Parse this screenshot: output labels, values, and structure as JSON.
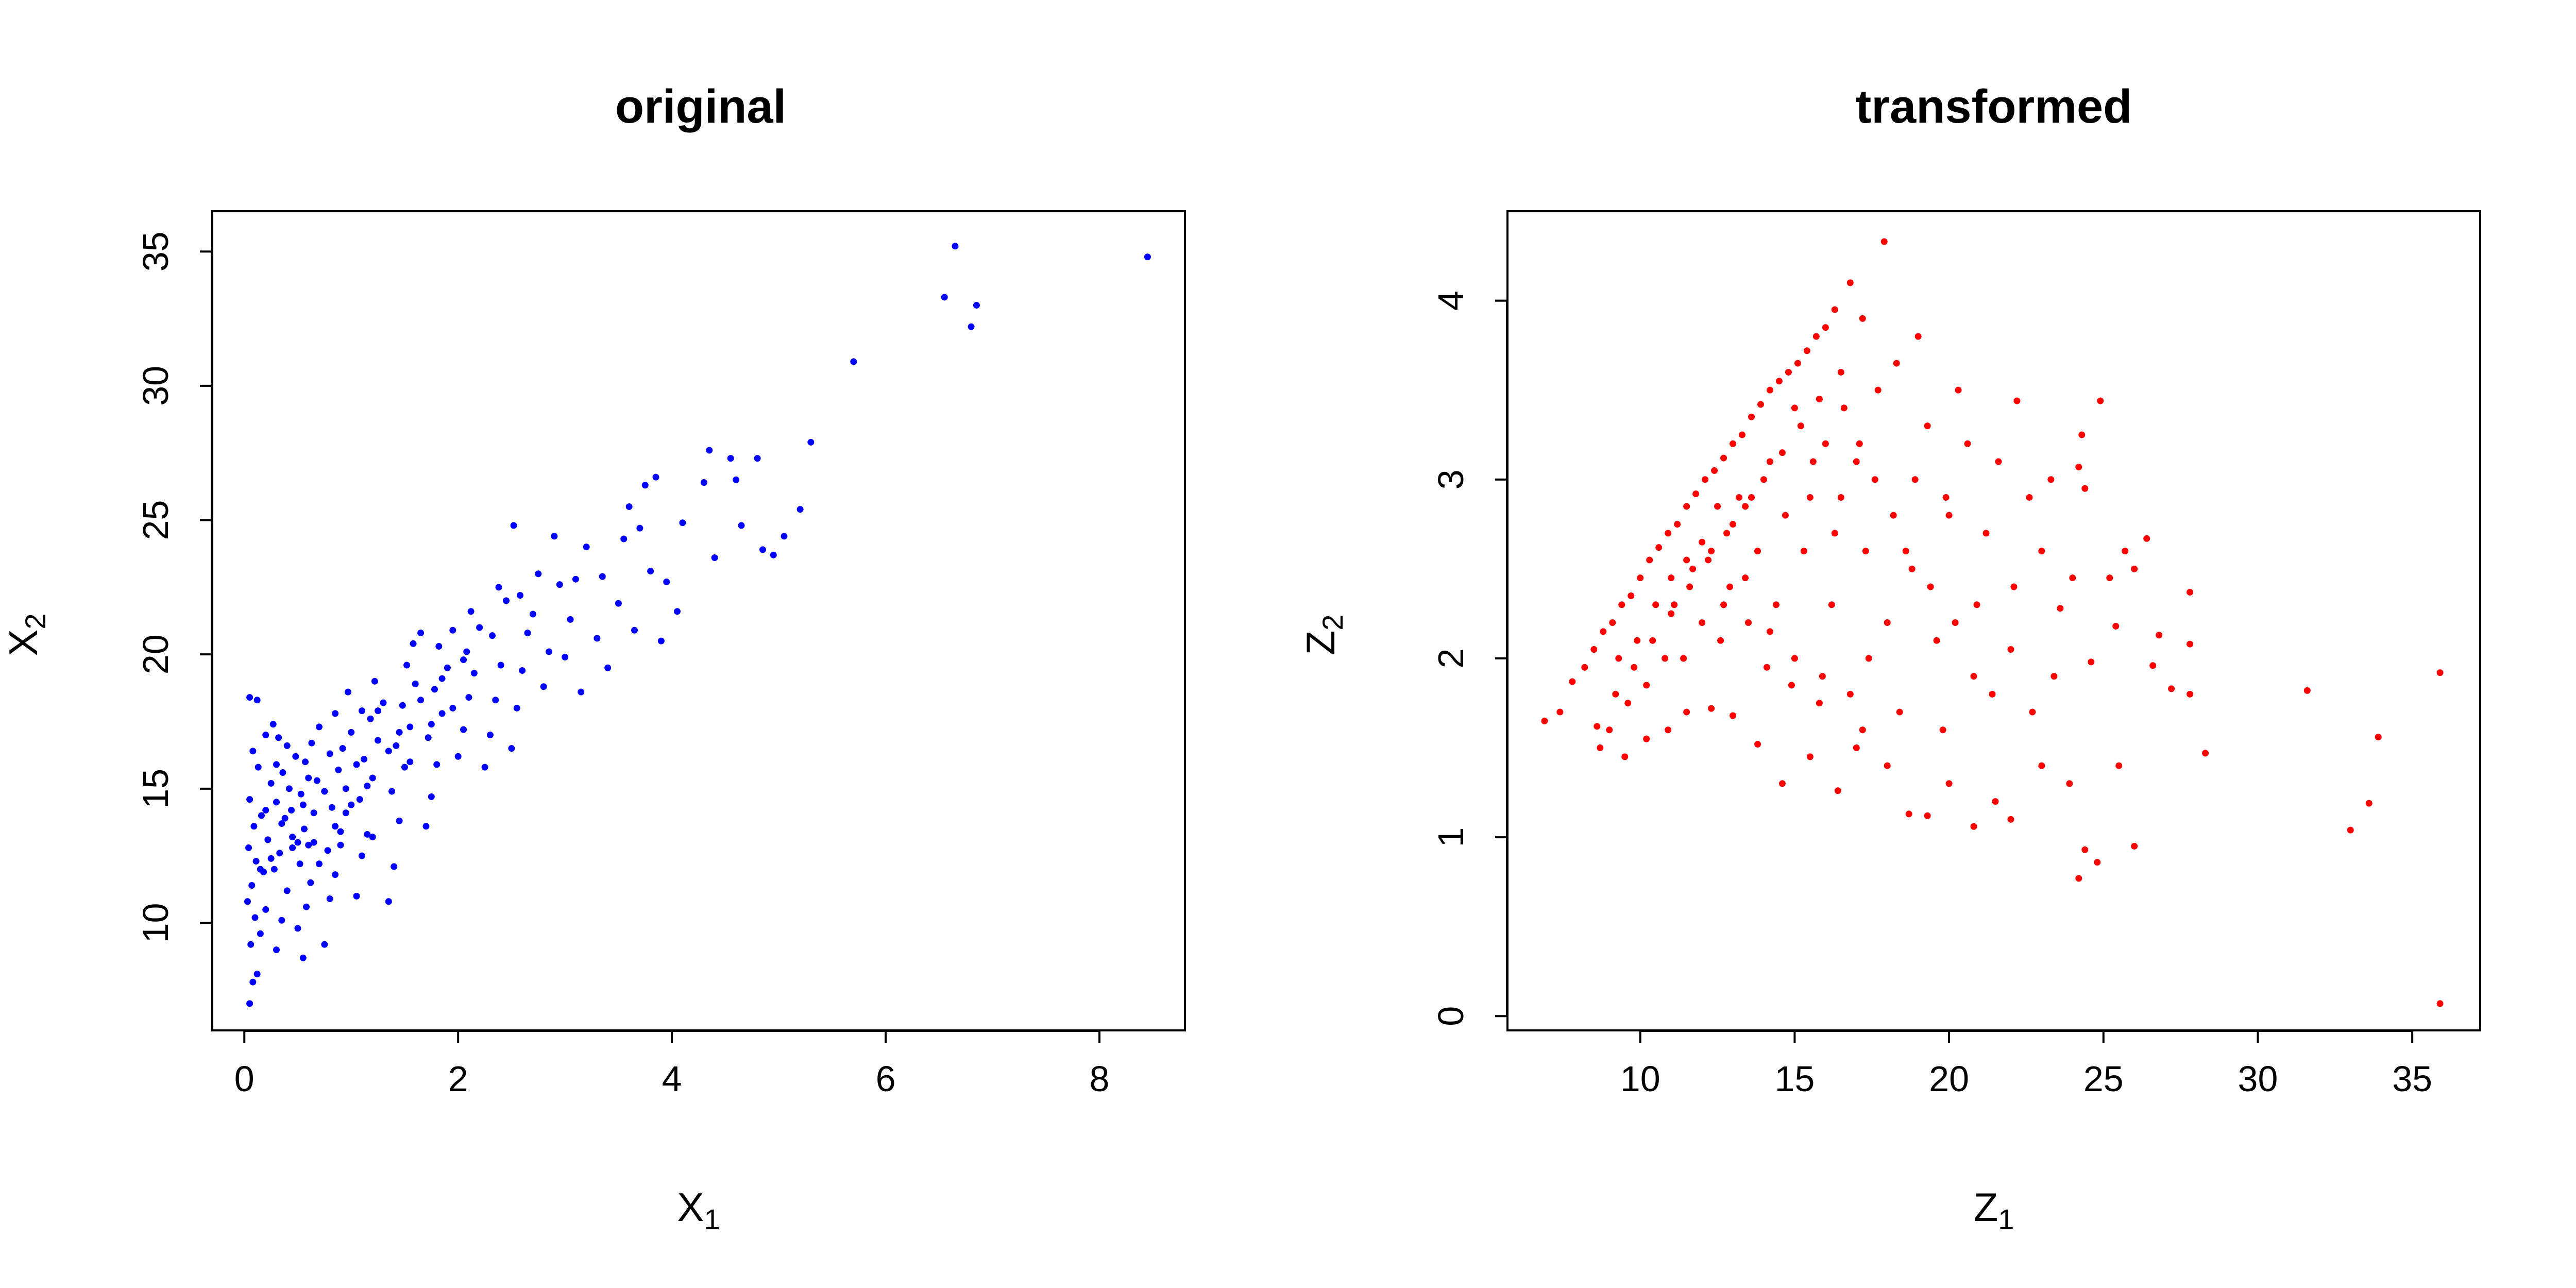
{
  "chart_data": [
    {
      "type": "scatter",
      "title": "original",
      "xlabel_main": "X",
      "xlabel_sub": "1",
      "ylabel_main": "X",
      "ylabel_sub": "2",
      "xlim": [
        -0.3,
        8.8
      ],
      "ylim": [
        6.0,
        36.5
      ],
      "xticks": [
        0,
        2,
        4,
        6,
        8
      ],
      "yticks": [
        10,
        15,
        20,
        25,
        30,
        35
      ],
      "color": "#0000ff",
      "grid": false,
      "points": [
        [
          0.05,
          7.0
        ],
        [
          0.08,
          7.8
        ],
        [
          0.12,
          8.1
        ],
        [
          0.06,
          9.2
        ],
        [
          0.15,
          9.6
        ],
        [
          0.1,
          10.2
        ],
        [
          0.03,
          10.8
        ],
        [
          0.2,
          10.5
        ],
        [
          0.07,
          11.4
        ],
        [
          0.18,
          11.9
        ],
        [
          0.11,
          12.3
        ],
        [
          0.04,
          12.8
        ],
        [
          0.22,
          13.1
        ],
        [
          0.09,
          13.6
        ],
        [
          0.16,
          14.0
        ],
        [
          0.05,
          14.6
        ],
        [
          0.25,
          15.2
        ],
        [
          0.13,
          15.8
        ],
        [
          0.08,
          16.4
        ],
        [
          0.2,
          17.0
        ],
        [
          0.05,
          18.4
        ],
        [
          0.12,
          18.3
        ],
        [
          0.3,
          9.0
        ],
        [
          0.35,
          10.1
        ],
        [
          0.4,
          11.2
        ],
        [
          0.28,
          12.0
        ],
        [
          0.33,
          12.6
        ],
        [
          0.45,
          13.2
        ],
        [
          0.38,
          13.9
        ],
        [
          0.3,
          14.5
        ],
        [
          0.42,
          15.0
        ],
        [
          0.36,
          15.6
        ],
        [
          0.48,
          16.2
        ],
        [
          0.32,
          16.9
        ],
        [
          0.27,
          17.4
        ],
        [
          0.55,
          8.7
        ],
        [
          0.5,
          9.8
        ],
        [
          0.58,
          10.6
        ],
        [
          0.62,
          11.5
        ],
        [
          0.52,
          12.2
        ],
        [
          0.6,
          12.9
        ],
        [
          0.56,
          13.5
        ],
        [
          0.65,
          14.1
        ],
        [
          0.53,
          14.8
        ],
        [
          0.68,
          15.3
        ],
        [
          0.57,
          16.0
        ],
        [
          0.63,
          16.7
        ],
        [
          0.7,
          17.3
        ],
        [
          0.5,
          13.0
        ],
        [
          0.44,
          14.2
        ],
        [
          0.75,
          9.2
        ],
        [
          0.8,
          10.9
        ],
        [
          0.85,
          11.8
        ],
        [
          0.78,
          12.7
        ],
        [
          0.9,
          13.4
        ],
        [
          0.82,
          14.3
        ],
        [
          0.95,
          15.0
        ],
        [
          0.88,
          15.7
        ],
        [
          0.92,
          16.5
        ],
        [
          1.0,
          17.1
        ],
        [
          0.85,
          17.8
        ],
        [
          0.97,
          18.6
        ],
        [
          1.05,
          11.0
        ],
        [
          1.1,
          12.5
        ],
        [
          1.15,
          13.3
        ],
        [
          1.08,
          14.6
        ],
        [
          1.2,
          15.4
        ],
        [
          1.12,
          16.1
        ],
        [
          1.25,
          16.8
        ],
        [
          1.18,
          17.6
        ],
        [
          1.3,
          18.2
        ],
        [
          1.22,
          19.0
        ],
        [
          1.35,
          10.8
        ],
        [
          1.4,
          12.1
        ],
        [
          1.45,
          13.8
        ],
        [
          1.38,
          14.9
        ],
        [
          1.5,
          15.8
        ],
        [
          1.42,
          16.6
        ],
        [
          1.55,
          17.3
        ],
        [
          1.48,
          18.1
        ],
        [
          1.6,
          18.9
        ],
        [
          1.52,
          19.6
        ],
        [
          1.58,
          20.4
        ],
        [
          1.65,
          20.8
        ],
        [
          1.7,
          13.6
        ],
        [
          1.75,
          14.7
        ],
        [
          1.8,
          15.9
        ],
        [
          1.72,
          16.9
        ],
        [
          1.85,
          17.8
        ],
        [
          1.78,
          18.7
        ],
        [
          1.9,
          19.5
        ],
        [
          1.82,
          20.3
        ],
        [
          1.95,
          20.9
        ],
        [
          2.0,
          16.2
        ],
        [
          2.05,
          17.2
        ],
        [
          2.1,
          18.4
        ],
        [
          2.15,
          19.3
        ],
        [
          2.08,
          20.1
        ],
        [
          2.2,
          21.0
        ],
        [
          2.12,
          21.6
        ],
        [
          2.25,
          15.8
        ],
        [
          2.3,
          17.0
        ],
        [
          2.35,
          18.3
        ],
        [
          2.4,
          19.6
        ],
        [
          2.32,
          20.7
        ],
        [
          2.45,
          22.0
        ],
        [
          2.38,
          22.5
        ],
        [
          2.5,
          16.5
        ],
        [
          2.55,
          18.0
        ],
        [
          2.6,
          19.4
        ],
        [
          2.65,
          20.8
        ],
        [
          2.58,
          22.2
        ],
        [
          2.52,
          24.8
        ],
        [
          2.7,
          21.5
        ],
        [
          2.75,
          23.0
        ],
        [
          2.8,
          18.8
        ],
        [
          2.85,
          20.1
        ],
        [
          2.9,
          24.4
        ],
        [
          2.95,
          22.6
        ],
        [
          3.0,
          19.9
        ],
        [
          3.05,
          21.3
        ],
        [
          3.1,
          22.8
        ],
        [
          3.15,
          18.6
        ],
        [
          3.2,
          24.0
        ],
        [
          3.3,
          20.6
        ],
        [
          3.35,
          22.9
        ],
        [
          3.4,
          19.5
        ],
        [
          3.5,
          21.9
        ],
        [
          3.55,
          24.3
        ],
        [
          3.6,
          25.5
        ],
        [
          3.65,
          20.9
        ],
        [
          3.7,
          24.7
        ],
        [
          3.75,
          26.3
        ],
        [
          3.8,
          23.1
        ],
        [
          3.85,
          26.6
        ],
        [
          3.9,
          20.5
        ],
        [
          3.95,
          22.7
        ],
        [
          4.05,
          21.6
        ],
        [
          4.1,
          24.9
        ],
        [
          4.3,
          26.4
        ],
        [
          4.35,
          27.6
        ],
        [
          4.4,
          23.6
        ],
        [
          4.55,
          27.3
        ],
        [
          4.6,
          26.5
        ],
        [
          4.65,
          24.8
        ],
        [
          4.8,
          27.3
        ],
        [
          4.85,
          23.9
        ],
        [
          4.95,
          23.7
        ],
        [
          5.05,
          24.4
        ],
        [
          5.2,
          25.4
        ],
        [
          5.3,
          27.9
        ],
        [
          5.7,
          30.9
        ],
        [
          6.55,
          33.3
        ],
        [
          6.65,
          35.2
        ],
        [
          6.8,
          32.2
        ],
        [
          6.85,
          33.0
        ],
        [
          8.45,
          34.8
        ],
        [
          0.15,
          12.0
        ],
        [
          0.25,
          12.4
        ],
        [
          0.35,
          13.7
        ],
        [
          0.45,
          12.8
        ],
        [
          0.55,
          14.4
        ],
        [
          0.65,
          13.0
        ],
        [
          0.75,
          14.9
        ],
        [
          0.85,
          13.6
        ],
        [
          0.95,
          14.1
        ],
        [
          1.05,
          15.9
        ],
        [
          1.15,
          15.1
        ],
        [
          1.25,
          17.9
        ],
        [
          1.35,
          16.4
        ],
        [
          1.45,
          17.1
        ],
        [
          1.55,
          16.0
        ],
        [
          1.65,
          18.3
        ],
        [
          1.75,
          17.4
        ],
        [
          1.85,
          19.1
        ],
        [
          1.95,
          18.0
        ],
        [
          2.05,
          19.8
        ],
        [
          0.2,
          14.2
        ],
        [
          0.3,
          15.9
        ],
        [
          0.4,
          16.6
        ],
        [
          0.6,
          15.4
        ],
        [
          0.7,
          12.2
        ],
        [
          0.8,
          16.3
        ],
        [
          0.9,
          12.9
        ],
        [
          1.0,
          14.4
        ],
        [
          1.1,
          17.9
        ],
        [
          1.2,
          13.2
        ]
      ]
    },
    {
      "type": "scatter",
      "title": "transformed",
      "xlabel_main": "Z",
      "xlabel_sub": "1",
      "ylabel_main": "Z",
      "ylabel_sub": "2",
      "xlim": [
        5.7,
        37.2
      ],
      "ylim": [
        -0.08,
        4.5
      ],
      "xticks": [
        10,
        15,
        20,
        25,
        30,
        35
      ],
      "yticks": [
        0,
        1,
        2,
        3,
        4
      ],
      "color": "#ff0000",
      "grid": false,
      "points": [
        [
          6.9,
          1.65
        ],
        [
          7.4,
          1.7
        ],
        [
          7.8,
          1.87
        ],
        [
          8.2,
          1.95
        ],
        [
          8.5,
          2.05
        ],
        [
          8.8,
          2.15
        ],
        [
          9.1,
          2.2
        ],
        [
          9.4,
          2.3
        ],
        [
          9.7,
          2.35
        ],
        [
          10.0,
          2.45
        ],
        [
          10.3,
          2.55
        ],
        [
          10.6,
          2.62
        ],
        [
          10.9,
          2.7
        ],
        [
          11.2,
          2.75
        ],
        [
          11.5,
          2.85
        ],
        [
          11.8,
          2.92
        ],
        [
          12.1,
          3.0
        ],
        [
          12.4,
          3.05
        ],
        [
          12.7,
          3.12
        ],
        [
          13.0,
          3.2
        ],
        [
          13.3,
          3.25
        ],
        [
          13.6,
          3.35
        ],
        [
          13.9,
          3.42
        ],
        [
          14.2,
          3.5
        ],
        [
          14.5,
          3.55
        ],
        [
          14.8,
          3.6
        ],
        [
          15.1,
          3.65
        ],
        [
          15.4,
          3.72
        ],
        [
          15.7,
          3.8
        ],
        [
          16.0,
          3.85
        ],
        [
          16.3,
          3.95
        ],
        [
          16.8,
          4.1
        ],
        [
          17.9,
          4.33
        ],
        [
          17.2,
          3.9
        ],
        [
          16.5,
          3.6
        ],
        [
          15.8,
          3.45
        ],
        [
          15.2,
          3.3
        ],
        [
          14.6,
          3.15
        ],
        [
          14.0,
          3.0
        ],
        [
          13.4,
          2.85
        ],
        [
          12.8,
          2.7
        ],
        [
          12.2,
          2.55
        ],
        [
          11.6,
          2.4
        ],
        [
          11.0,
          2.25
        ],
        [
          10.4,
          2.1
        ],
        [
          9.8,
          1.95
        ],
        [
          9.2,
          1.8
        ],
        [
          8.6,
          1.62
        ],
        [
          8.7,
          1.5
        ],
        [
          9.5,
          1.45
        ],
        [
          10.2,
          1.55
        ],
        [
          10.9,
          1.6
        ],
        [
          11.5,
          1.7
        ],
        [
          12.3,
          1.72
        ],
        [
          13.0,
          1.68
        ],
        [
          13.8,
          1.52
        ],
        [
          14.6,
          1.3
        ],
        [
          15.5,
          1.45
        ],
        [
          16.4,
          1.26
        ],
        [
          17.2,
          1.6
        ],
        [
          18.0,
          1.4
        ],
        [
          18.7,
          1.13
        ],
        [
          19.3,
          1.12
        ],
        [
          20.0,
          1.3
        ],
        [
          20.8,
          1.06
        ],
        [
          21.5,
          1.2
        ],
        [
          22.0,
          1.1
        ],
        [
          23.0,
          1.4
        ],
        [
          23.9,
          1.3
        ],
        [
          24.2,
          0.77
        ],
        [
          24.4,
          0.93
        ],
        [
          24.8,
          0.86
        ],
        [
          25.5,
          1.4
        ],
        [
          26.0,
          0.95
        ],
        [
          33.0,
          1.04
        ],
        [
          33.6,
          1.19
        ],
        [
          35.9,
          0.07
        ],
        [
          35.9,
          1.92
        ],
        [
          33.9,
          1.56
        ],
        [
          31.6,
          1.82
        ],
        [
          28.3,
          1.47
        ],
        [
          27.8,
          1.8
        ],
        [
          27.8,
          2.08
        ],
        [
          27.8,
          2.37
        ],
        [
          27.2,
          1.83
        ],
        [
          26.8,
          2.13
        ],
        [
          26.6,
          1.96
        ],
        [
          26.4,
          2.67
        ],
        [
          26.0,
          2.5
        ],
        [
          25.7,
          2.6
        ],
        [
          25.4,
          2.18
        ],
        [
          25.2,
          2.45
        ],
        [
          24.9,
          3.44
        ],
        [
          24.6,
          1.98
        ],
        [
          24.4,
          2.95
        ],
        [
          24.3,
          3.25
        ],
        [
          24.2,
          3.07
        ],
        [
          24.0,
          2.45
        ],
        [
          23.6,
          2.28
        ],
        [
          23.3,
          3.0
        ],
        [
          23.0,
          2.6
        ],
        [
          22.6,
          2.9
        ],
        [
          22.2,
          3.44
        ],
        [
          22.0,
          2.05
        ],
        [
          21.6,
          3.1
        ],
        [
          21.2,
          2.7
        ],
        [
          20.9,
          2.3
        ],
        [
          20.6,
          3.2
        ],
        [
          20.3,
          3.5
        ],
        [
          20.0,
          2.8
        ],
        [
          19.6,
          2.1
        ],
        [
          19.3,
          3.3
        ],
        [
          19.0,
          3.8
        ],
        [
          18.6,
          2.6
        ],
        [
          18.3,
          3.65
        ],
        [
          18.0,
          2.2
        ],
        [
          17.7,
          3.5
        ],
        [
          17.4,
          2.0
        ],
        [
          17.1,
          3.2
        ],
        [
          16.8,
          1.8
        ],
        [
          16.5,
          2.9
        ],
        [
          16.2,
          2.3
        ],
        [
          15.9,
          1.9
        ],
        [
          15.6,
          3.1
        ],
        [
          15.3,
          2.6
        ],
        [
          15.0,
          2.0
        ],
        [
          14.7,
          2.8
        ],
        [
          14.4,
          2.3
        ],
        [
          14.1,
          1.95
        ],
        [
          13.8,
          2.6
        ],
        [
          13.5,
          2.2
        ],
        [
          13.2,
          2.9
        ],
        [
          12.9,
          2.4
        ],
        [
          12.6,
          2.1
        ],
        [
          12.3,
          2.6
        ],
        [
          12.0,
          2.2
        ],
        [
          11.7,
          2.5
        ],
        [
          11.4,
          2.0
        ],
        [
          11.1,
          2.3
        ],
        [
          10.8,
          2.0
        ],
        [
          10.5,
          2.3
        ],
        [
          10.2,
          1.85
        ],
        [
          9.9,
          2.1
        ],
        [
          9.6,
          1.75
        ],
        [
          9.3,
          2.0
        ],
        [
          9.0,
          1.6
        ],
        [
          16.0,
          3.2
        ],
        [
          15.0,
          3.4
        ],
        [
          14.2,
          3.1
        ],
        [
          13.6,
          2.9
        ],
        [
          13.0,
          2.75
        ],
        [
          12.5,
          2.85
        ],
        [
          12.0,
          2.65
        ],
        [
          11.5,
          2.55
        ],
        [
          11.0,
          2.45
        ],
        [
          16.6,
          3.4
        ],
        [
          17.0,
          3.1
        ],
        [
          17.6,
          3.0
        ],
        [
          18.2,
          2.8
        ],
        [
          18.8,
          2.5
        ],
        [
          19.4,
          2.4
        ],
        [
          20.2,
          2.2
        ],
        [
          20.8,
          1.9
        ],
        [
          21.4,
          1.8
        ],
        [
          22.1,
          2.4
        ],
        [
          22.7,
          1.7
        ],
        [
          23.4,
          1.9
        ],
        [
          19.8,
          1.6
        ],
        [
          18.4,
          1.7
        ],
        [
          17.0,
          1.5
        ],
        [
          15.8,
          1.75
        ],
        [
          14.9,
          1.85
        ],
        [
          14.2,
          2.15
        ],
        [
          13.4,
          2.45
        ],
        [
          12.7,
          2.3
        ],
        [
          15.5,
          2.9
        ],
        [
          16.3,
          2.7
        ],
        [
          17.3,
          2.6
        ],
        [
          18.9,
          3.0
        ],
        [
          19.9,
          2.9
        ]
      ]
    }
  ]
}
